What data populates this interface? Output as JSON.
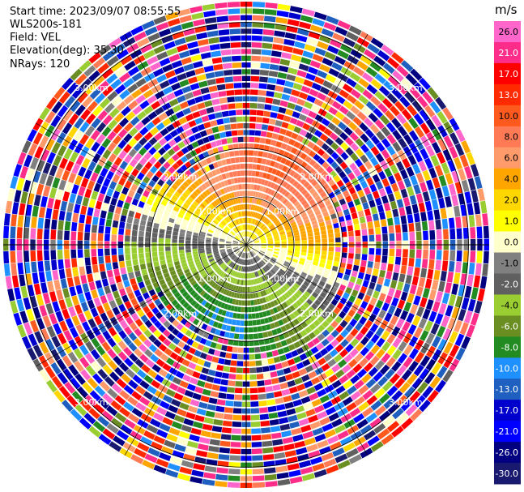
{
  "header": {
    "start_time": "Start time: 2023/09/07 08:55:55",
    "instrument": "WLS200s-181",
    "field": "Field: VEL",
    "elevation": "Elevation(deg): 35.30",
    "nrays": "NRays: 120"
  },
  "chart_data": {
    "type": "heatmap",
    "projection": "polar PPI",
    "field": "VEL",
    "unit": "m/s",
    "n_rays": 120,
    "range_rings": [
      {
        "label": "1.00km"
      },
      {
        "label": "2.00km"
      },
      {
        "label": "3.00km"
      }
    ],
    "colorbar": {
      "unit": "m/s",
      "ticks": [
        "26.0",
        "21.0",
        "17.0",
        "13.0",
        "10.0",
        "8.0",
        "6.0",
        "4.0",
        "2.0",
        "1.0",
        "0.0",
        "-1.0",
        "-2.0",
        "-4.0",
        "-6.0",
        "-8.0",
        "-10.0",
        "-13.0",
        "-17.0",
        "-21.0",
        "-26.0",
        "-30.0"
      ],
      "colors": [
        "#ff66cc",
        "#ff2d8a",
        "#ff0000",
        "#ff2a00",
        "#ff5a1e",
        "#ff7a55",
        "#ff9a6a",
        "#ffa500",
        "#ffd700",
        "#ffff00",
        "#ffffcc",
        "#808080",
        "#606060",
        "#9acd32",
        "#6b8e23",
        "#228b22",
        "#1e90ff",
        "#1f5fbf",
        "#0000cd",
        "#0000ff",
        "#000080",
        "#191970"
      ]
    },
    "velocity_pattern": {
      "inner_radius_km_max": 2.2,
      "north_sector": "positive (orange/red, 6 to 10 m/s)",
      "east_sector": "positive (yellow, 1 to 2 m/s)",
      "south_sector": "negative (blue/green, -6 to -10 m/s)",
      "west_sector": "negative (green, -2 to -6 m/s)",
      "outer_region": "noisy / random values"
    }
  }
}
